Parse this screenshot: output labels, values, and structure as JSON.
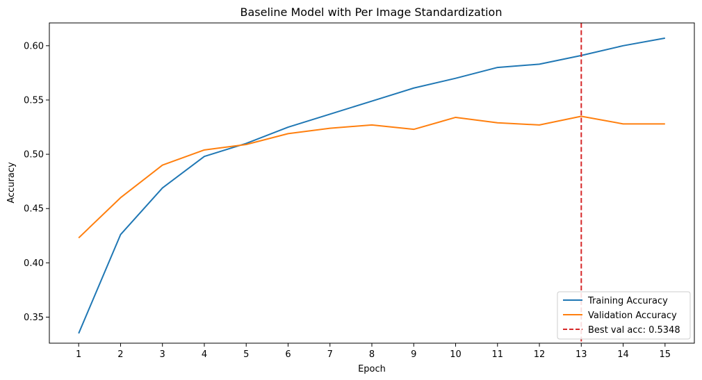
{
  "chart_data": {
    "type": "line",
    "title": "Baseline Model with Per Image Standardization",
    "xlabel": "Epoch",
    "ylabel": "Accuracy",
    "x": [
      1,
      2,
      3,
      4,
      5,
      6,
      7,
      8,
      9,
      10,
      11,
      12,
      13,
      14,
      15
    ],
    "xlim": [
      0.3,
      15.7
    ],
    "ylim": [
      0.326,
      0.621
    ],
    "yticks": [
      0.35,
      0.4,
      0.45,
      0.5,
      0.55,
      0.6
    ],
    "ytick_labels": [
      "0.35",
      "0.40",
      "0.45",
      "0.50",
      "0.55",
      "0.60"
    ],
    "xtick_labels": [
      "1",
      "2",
      "3",
      "4",
      "5",
      "6",
      "7",
      "8",
      "9",
      "10",
      "11",
      "12",
      "13",
      "14",
      "15"
    ],
    "series": [
      {
        "name": "Training Accuracy",
        "color": "#1f77b4",
        "style": "solid",
        "values": [
          0.335,
          0.426,
          0.469,
          0.498,
          0.51,
          0.525,
          0.537,
          0.549,
          0.561,
          0.57,
          0.58,
          0.583,
          0.591,
          0.6,
          0.607
        ]
      },
      {
        "name": "Validation Accuracy",
        "color": "#ff7f0e",
        "style": "solid",
        "values": [
          0.423,
          0.46,
          0.49,
          0.504,
          0.509,
          0.519,
          0.524,
          0.527,
          0.523,
          0.534,
          0.529,
          0.527,
          0.535,
          0.528,
          0.528
        ]
      }
    ],
    "vline": {
      "x": 13,
      "label": "Best val acc: 0.5348",
      "color": "#d62728",
      "style": "dashed"
    },
    "legend_position": "lower-right",
    "grid": false
  }
}
